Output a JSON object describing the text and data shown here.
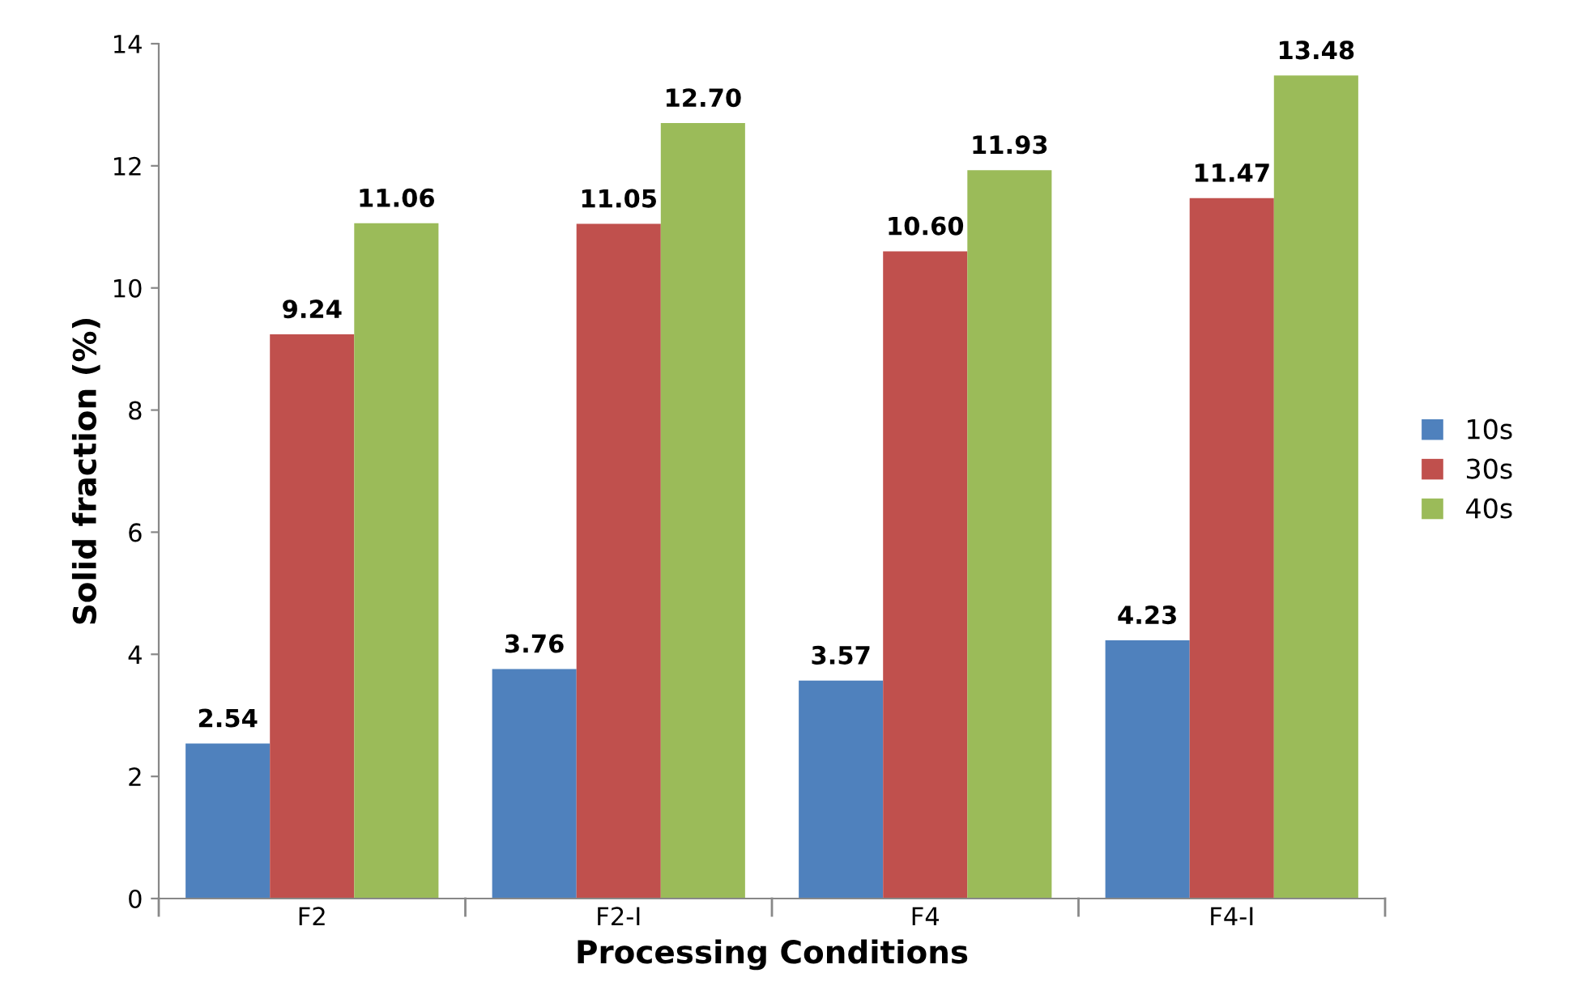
{
  "chart_data": {
    "type": "bar",
    "xlabel": "Processing Conditions",
    "ylabel": "Solid fraction (%)",
    "categories": [
      "F2",
      "F2-I",
      "F4",
      "F4-I"
    ],
    "series": [
      {
        "name": "10s",
        "color": "#4f81bd",
        "values": [
          2.54,
          3.76,
          3.57,
          4.23
        ],
        "value_labels": [
          "2.54",
          "3.76",
          "3.57",
          "4.23"
        ]
      },
      {
        "name": "30s",
        "color": "#c0504d",
        "values": [
          9.24,
          11.05,
          10.6,
          11.47
        ],
        "value_labels": [
          "9.24",
          "11.05",
          "10.60",
          "11.47"
        ]
      },
      {
        "name": "40s",
        "color": "#9bbb59",
        "values": [
          11.06,
          12.7,
          11.93,
          13.48
        ],
        "value_labels": [
          "11.06",
          "12.70",
          "11.93",
          "13.48"
        ]
      }
    ],
    "ylim": [
      0,
      14
    ],
    "yticks": [
      0,
      2,
      4,
      6,
      8,
      10,
      12,
      14
    ],
    "grid": false,
    "legend": "right"
  }
}
